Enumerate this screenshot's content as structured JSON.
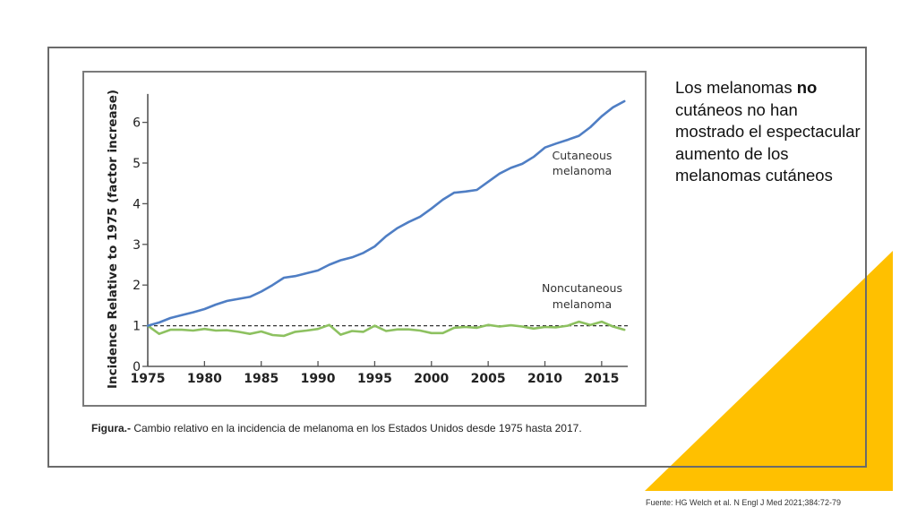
{
  "chart_data": {
    "type": "line",
    "title": "",
    "xlabel": "",
    "ylabel": "Incidence Relative to 1975 (factor increase)",
    "xlim": [
      1975,
      2017.3
    ],
    "ylim": [
      0,
      6.7
    ],
    "x_ticks": [
      1975,
      1980,
      1985,
      1990,
      1995,
      2000,
      2005,
      2010,
      2015
    ],
    "y_ticks": [
      0,
      1,
      2,
      3,
      4,
      5,
      6
    ],
    "reference_line": 1,
    "grid": false,
    "x": [
      1975,
      1976,
      1977,
      1978,
      1979,
      1980,
      1981,
      1982,
      1983,
      1984,
      1985,
      1986,
      1987,
      1988,
      1989,
      1990,
      1991,
      1992,
      1993,
      1994,
      1995,
      1996,
      1997,
      1998,
      1999,
      2000,
      2001,
      2002,
      2003,
      2004,
      2005,
      2006,
      2007,
      2008,
      2009,
      2010,
      2011,
      2012,
      2013,
      2014,
      2015,
      2016,
      2017
    ],
    "series": [
      {
        "name": "Cutaneous melanoma",
        "label_lines": [
          "Cutaneous",
          "melanoma"
        ],
        "color": "#4f7ec4",
        "values": [
          1.0,
          1.08,
          1.19,
          1.26,
          1.33,
          1.41,
          1.52,
          1.61,
          1.66,
          1.71,
          1.84,
          2.0,
          2.18,
          2.22,
          2.29,
          2.36,
          2.5,
          2.61,
          2.68,
          2.79,
          2.95,
          3.2,
          3.4,
          3.55,
          3.68,
          3.88,
          4.1,
          4.27,
          4.3,
          4.34,
          4.54,
          4.74,
          4.88,
          4.98,
          5.15,
          5.38,
          5.48,
          5.57,
          5.67,
          5.88,
          6.15,
          6.37,
          6.52
        ]
      },
      {
        "name": "Noncutaneous melanoma",
        "label_lines": [
          "Noncutaneous",
          "melanoma"
        ],
        "color": "#8dc160",
        "values": [
          1.0,
          0.8,
          0.9,
          0.9,
          0.88,
          0.92,
          0.88,
          0.89,
          0.85,
          0.8,
          0.86,
          0.77,
          0.75,
          0.85,
          0.88,
          0.92,
          1.02,
          0.78,
          0.87,
          0.85,
          1.0,
          0.87,
          0.91,
          0.91,
          0.88,
          0.82,
          0.82,
          0.95,
          0.97,
          0.95,
          1.02,
          0.98,
          1.01,
          0.98,
          0.93,
          0.97,
          0.96,
          1.0,
          1.1,
          1.02,
          1.1,
          0.98,
          0.9
        ]
      }
    ]
  },
  "caption": {
    "bold": "Figura.-",
    "text": " Cambio relativo en la incidencia de melanoma en los Estados Unidos desde 1975 hasta 2017."
  },
  "sidebox": {
    "part1": "Los melanomas ",
    "bold": "no",
    "part2": " cutáneos no han mostrado el espectacular aumento de los melanomas cutáneos"
  },
  "source": "Fuente: HG Welch et al. N Engl J Med 2021;384:72-79",
  "colors": {
    "accent_triangle": "#ffc000",
    "frame": "#6b6b6b"
  }
}
